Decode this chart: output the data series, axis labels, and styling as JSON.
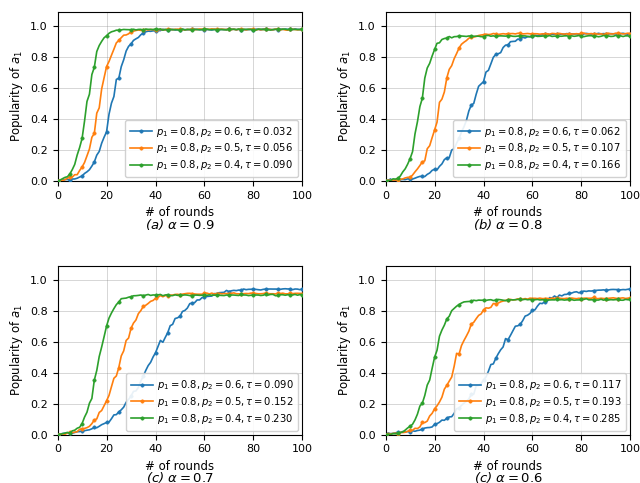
{
  "subplots": [
    {
      "alpha": 0.9,
      "label": "(a) $\\alpha = 0.9$",
      "curves": [
        {
          "color": "#1f77b4",
          "label": "$p_1 = 0.8, p_2 = 0.6, \\tau = 0.032$",
          "rate": 0.28,
          "mid": 22.0,
          "asym": 0.978
        },
        {
          "color": "#ff7f0e",
          "label": "$p_1 = 0.8, p_2 = 0.5, \\tau = 0.056$",
          "rate": 0.32,
          "mid": 17.0,
          "asym": 0.978
        },
        {
          "color": "#2ca02c",
          "label": "$p_1 = 0.8, p_2 = 0.4, \\tau = 0.090$",
          "rate": 0.42,
          "mid": 12.0,
          "asym": 0.978
        }
      ]
    },
    {
      "alpha": 0.8,
      "label": "(b) $\\alpha = 0.8$",
      "curves": [
        {
          "color": "#1f77b4",
          "label": "$p_1 = 0.8, p_2 = 0.6, \\tau = 0.062$",
          "rate": 0.17,
          "mid": 35.0,
          "asym": 0.95
        },
        {
          "color": "#ff7f0e",
          "label": "$p_1 = 0.8, p_2 = 0.5, \\tau = 0.107$",
          "rate": 0.28,
          "mid": 22.0,
          "asym": 0.95
        },
        {
          "color": "#2ca02c",
          "label": "$p_1 = 0.8, p_2 = 0.4, \\tau = 0.166$",
          "rate": 0.4,
          "mid": 14.0,
          "asym": 0.935
        }
      ]
    },
    {
      "alpha": 0.7,
      "label": "(c) $\\alpha = 0.7$",
      "curves": [
        {
          "color": "#1f77b4",
          "label": "$p_1 = 0.8, p_2 = 0.6, \\tau = 0.090$",
          "rate": 0.13,
          "mid": 38.0,
          "asym": 0.94
        },
        {
          "color": "#ff7f0e",
          "label": "$p_1 = 0.8, p_2 = 0.5, \\tau = 0.152$",
          "rate": 0.22,
          "mid": 25.0,
          "asym": 0.91
        },
        {
          "color": "#2ca02c",
          "label": "$p_1 = 0.8, p_2 = 0.4, \\tau = 0.230$",
          "rate": 0.35,
          "mid": 16.5,
          "asym": 0.9
        }
      ]
    },
    {
      "alpha": 0.6,
      "label": "(c) $\\alpha = 0.6$",
      "curves": [
        {
          "color": "#1f77b4",
          "label": "$p_1 = 0.8, p_2 = 0.6, \\tau = 0.117$",
          "rate": 0.11,
          "mid": 44.0,
          "asym": 0.94
        },
        {
          "color": "#ff7f0e",
          "label": "$p_1 = 0.8, p_2 = 0.5, \\tau = 0.193$",
          "rate": 0.19,
          "mid": 28.0,
          "asym": 0.88
        },
        {
          "color": "#2ca02c",
          "label": "$p_1 = 0.8, p_2 = 0.4, \\tau = 0.285$",
          "rate": 0.3,
          "mid": 19.0,
          "asym": 0.87
        }
      ]
    }
  ],
  "xlabel": "# of rounds",
  "ylabel": "Popularity of $a_1$",
  "xlim": [
    0,
    100
  ],
  "ylim": [
    0.0,
    1.09
  ],
  "xticks": [
    0,
    20,
    40,
    60,
    80,
    100
  ],
  "yticks": [
    0.0,
    0.2,
    0.4,
    0.6,
    0.8,
    1.0
  ],
  "marker": "o",
  "linewidth": 1.2,
  "markersize": 2.5,
  "legend_fontsize": 7.2,
  "axis_fontsize": 8.5,
  "tick_fontsize": 8.0,
  "caption_fontsize": 9.5,
  "noise_std": 0.007
}
